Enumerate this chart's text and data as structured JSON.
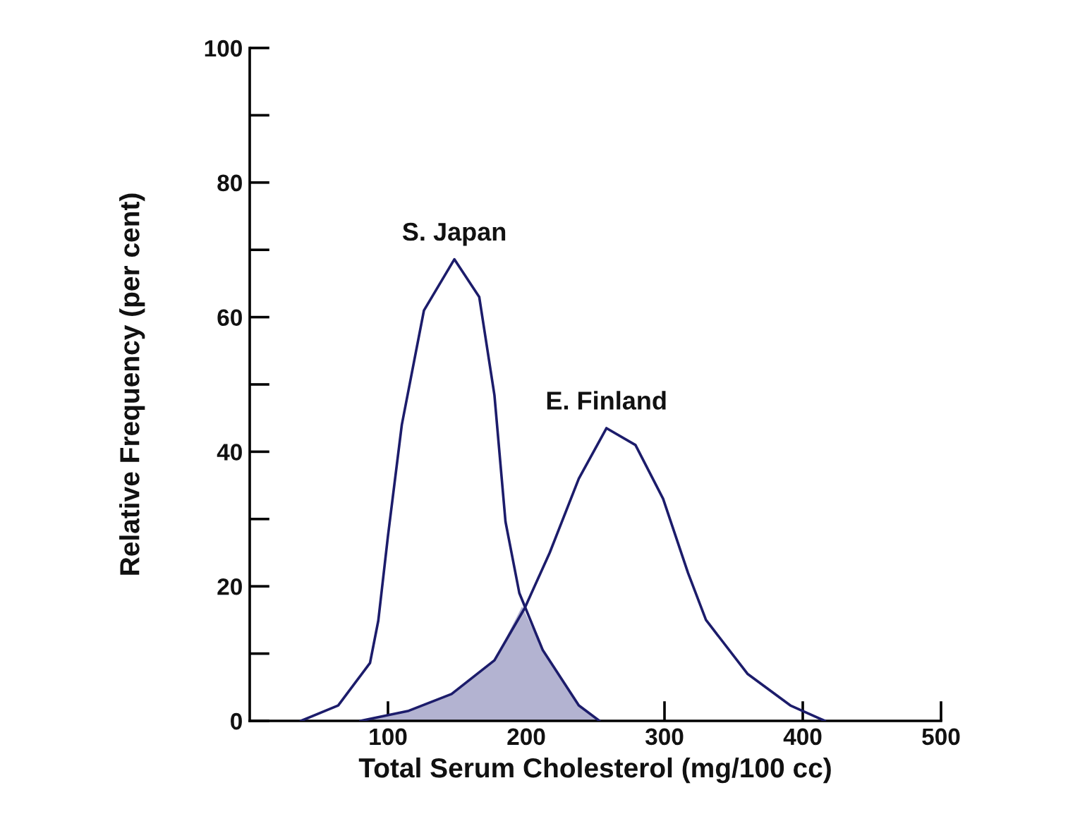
{
  "chart_data": {
    "type": "line",
    "xlabel": "Total Serum Cholesterol (mg/100 cc)",
    "ylabel": "Relative Frequency (per cent)",
    "xlim": [
      0,
      500
    ],
    "xticks": [
      100,
      200,
      300,
      400,
      500
    ],
    "ylim": [
      0,
      100
    ],
    "yticks": [
      0,
      {
        "value": 10,
        "label": null
      },
      20,
      {
        "value": 30,
        "label": null
      },
      40,
      {
        "value": 50,
        "label": null
      },
      60,
      {
        "value": 70,
        "label": null
      },
      80,
      {
        "value": 90,
        "label": null
      },
      100
    ],
    "grid": false,
    "marker": "none",
    "line_style": "solid",
    "series": [
      {
        "name": "S. Japan",
        "color": "#1c1c6b",
        "x": [
          37,
          64,
          87,
          93,
          100,
          110,
          126,
          148,
          166,
          177,
          185,
          195,
          212,
          238,
          253
        ],
        "values": [
          0,
          2.3,
          8.6,
          14.9,
          27.5,
          44,
          61,
          68.6,
          63,
          48.4,
          29.6,
          19,
          10.5,
          2.3,
          0
        ]
      },
      {
        "name": "E. Finland",
        "color": "#1c1c6b",
        "x": [
          80,
          115,
          146,
          177,
          199,
          217,
          238,
          258,
          279,
          299,
          317,
          330,
          360,
          391,
          416
        ],
        "values": [
          0,
          1.5,
          4,
          9,
          16.8,
          25,
          36,
          43.5,
          41,
          33,
          22,
          15,
          7,
          2.3,
          0
        ]
      },
      {
        "type": "area",
        "color": "#b3b3d1",
        "x": [
          80,
          115,
          146,
          177,
          197,
          212,
          238,
          253
        ],
        "values": [
          0,
          1.5,
          4,
          9,
          17,
          10.5,
          2.3,
          0
        ]
      }
    ]
  }
}
